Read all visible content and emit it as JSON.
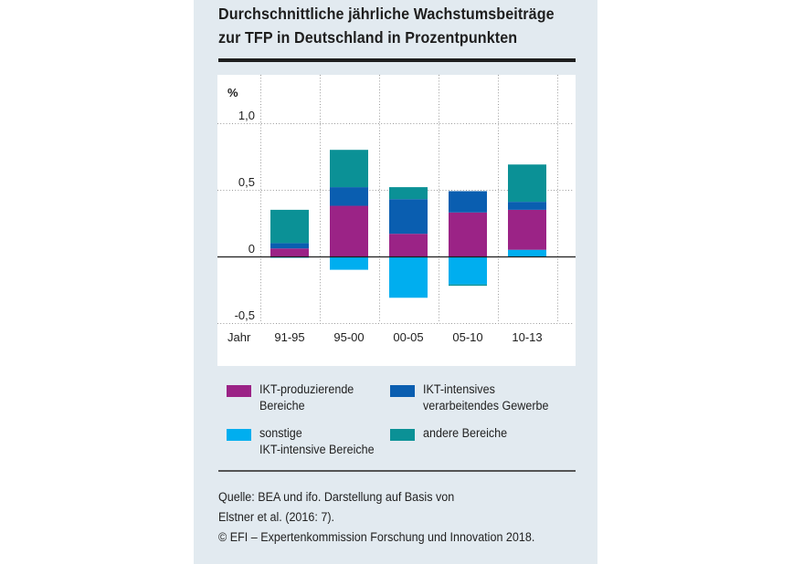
{
  "title": {
    "line1": "Durchschnittliche jährliche Wachstumsbeiträge",
    "line2": "zur TFP in Deutschland in Prozentpunkten"
  },
  "colors": {
    "panel_background": "#e2eaf0",
    "ikt_produzierend": "#9b2386",
    "ikt_intensiv_verarbeitend": "#0a5eb0",
    "sonstige_ikt_intensiv": "#00aeef",
    "andere": "#0b9196"
  },
  "chart_data": {
    "type": "bar",
    "stacked": true,
    "title": "Durchschnittliche jährliche Wachstumsbeiträge zur TFP in Deutschland in Prozentpunkten",
    "ylabel": "%",
    "xlabel": "Jahr",
    "categories": [
      "91-95",
      "95-00",
      "00-05",
      "05-10",
      "10-13"
    ],
    "ylim": [
      -0.5,
      1.0
    ],
    "yticks": [
      {
        "value": 1.0,
        "label": "1,0"
      },
      {
        "value": 0.5,
        "label": "0,5"
      },
      {
        "value": 0,
        "label": "0"
      },
      {
        "value": -0.5,
        "label": "-0,5"
      }
    ],
    "grid": true,
    "series": [
      {
        "name": "sonstige IKT-intensive Bereiche",
        "key": "sonstige_ikt_intensiv",
        "values": [
          -0.01,
          -0.1,
          -0.31,
          -0.21,
          0.05
        ]
      },
      {
        "name": "IKT-produzierende Bereiche",
        "key": "ikt_produzierend",
        "values": [
          0.06,
          0.38,
          0.17,
          0.33,
          0.3
        ]
      },
      {
        "name": "IKT-intensives verarbeitendes Gewerbe",
        "key": "ikt_intensiv_verarbeitend",
        "values": [
          0.04,
          0.14,
          0.26,
          0.16,
          0.06
        ]
      },
      {
        "name": "andere Bereiche",
        "key": "andere",
        "values": [
          0.25,
          0.28,
          0.09,
          -0.01,
          0.28
        ]
      }
    ],
    "legend_placement": "bottom"
  },
  "legend": [
    {
      "label": "IKT-produzierende\nBereiche",
      "key": "ikt_produzierend"
    },
    {
      "label": "IKT-intensives\nverarbeitendes Gewerbe",
      "key": "ikt_intensiv_verarbeitend"
    },
    {
      "label": "sonstige\nIKT-intensive Bereiche",
      "key": "sonstige_ikt_intensiv"
    },
    {
      "label": "andere Bereiche",
      "key": "andere"
    }
  ],
  "source": {
    "line1": "Quelle: BEA und ifo. Darstellung auf Basis von",
    "line2": "Elstner et al. (2016: 7).",
    "line3": "© EFI – Expertenkommission Forschung und Innovation 2018."
  }
}
